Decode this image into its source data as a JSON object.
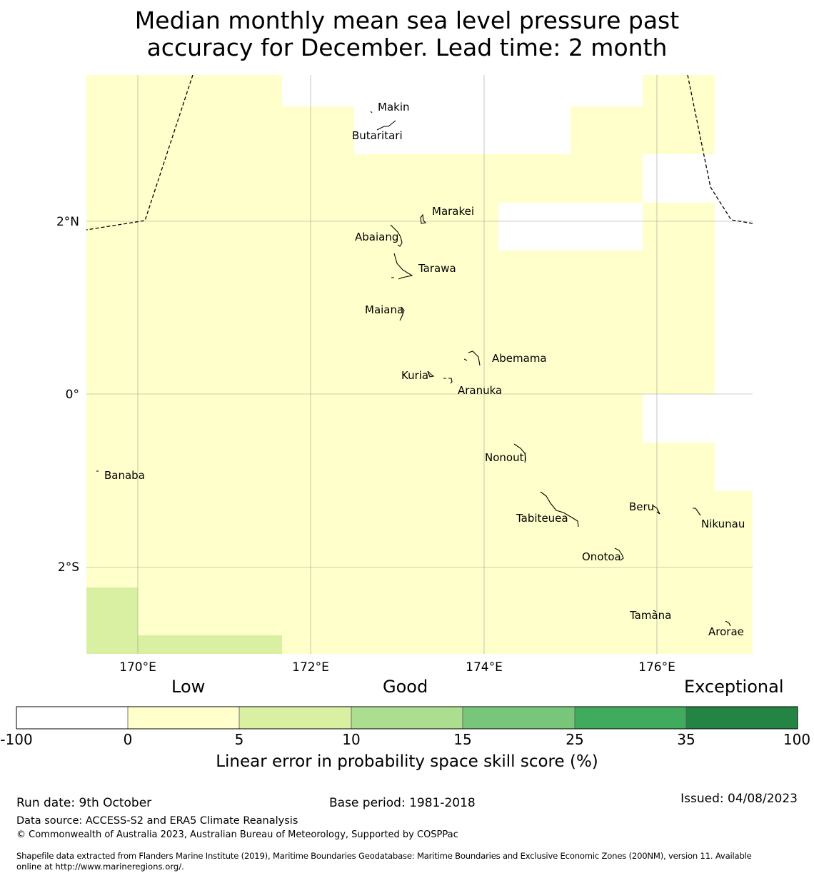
{
  "title": {
    "line1": "Median monthly mean sea level pressure past",
    "line2": "accuracy for December. Lead time: 2 month"
  },
  "map": {
    "lat_labels": [
      "2°N",
      "0°",
      "2°S"
    ],
    "lon_labels": [
      "170°E",
      "172°E",
      "174°E",
      "176°E"
    ],
    "islands": [
      "Makin",
      "Butaritari",
      "Marakei",
      "Abaiang",
      "Tarawa",
      "Maiana",
      "Abemama",
      "Kuria",
      "Aranuka",
      "Nonouti",
      "Banaba",
      "Tabiteuea",
      "Beru",
      "Nikunau",
      "Onotoa",
      "Tamana",
      "Arorae"
    ],
    "colors": {
      "no_data": "#ffffff",
      "low": "#ffffcc",
      "fair": "#d9f0a3",
      "grid": "#888888",
      "coast": "#000000"
    }
  },
  "colorbar": {
    "category_labels": [
      "Low",
      "Good",
      "Exceptional"
    ],
    "tick_labels": [
      "-100",
      "0",
      "5",
      "10",
      "15",
      "25",
      "35",
      "100"
    ],
    "segment_colors": [
      "#ffffff",
      "#ffffcc",
      "#d9f0a3",
      "#addd8e",
      "#78c679",
      "#41ab5d",
      "#238443"
    ],
    "title": "Linear error in probability space skill score (%)"
  },
  "footer": {
    "run_date": "Run date: 9th October",
    "base_period": "Base period: 1981-2018",
    "issued": "Issued: 04/08/2023",
    "data_source": "Data source: ACCESS-S2 and ERA5 Climate Reanalysis",
    "copyright": "© Commonwealth of Australia 2023, Australian Bureau of Meteorology, Supported by COSPPac",
    "shapefile_line1": "Shapefile data extracted from Flanders Marine Institute (2019), Maritime Boundaries Geodatabase: Maritime Boundaries and Exclusive Economic Zones (200NM), version 11. Available",
    "shapefile_line2": "online at http://www.marineregions.org/."
  }
}
